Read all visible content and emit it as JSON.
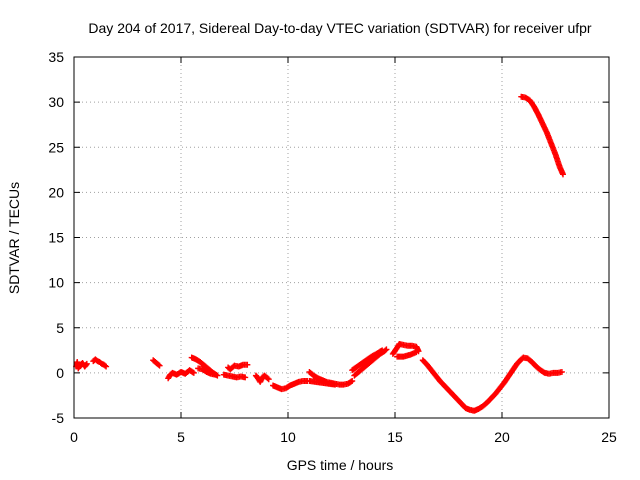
{
  "chart_data": {
    "type": "scatter",
    "title": "Day 204 of 2017, Sidereal Day-to-day VTEC variation (SDTVAR) for receiver ufpr",
    "xlabel": "GPS time / hours",
    "ylabel": "SDTVAR / TECUs",
    "xlim": [
      0,
      25
    ],
    "ylim": [
      -5,
      35
    ],
    "x_ticks": [
      0,
      5,
      10,
      15,
      20,
      25
    ],
    "y_ticks": [
      -5,
      0,
      5,
      10,
      15,
      20,
      25,
      30,
      35
    ],
    "x_tick_labels": [
      "0",
      "5",
      "10",
      "15",
      "20",
      "25"
    ],
    "y_tick_labels": [
      "-5",
      "0",
      "5",
      "10",
      "15",
      "20",
      "25",
      "30",
      "35"
    ],
    "grid": true,
    "marker": "+",
    "color": "#ff0000",
    "series": [
      {
        "name": "SDTVAR",
        "segments": [
          [
            [
              0.1,
              0.7
            ],
            [
              0.15,
              1.2
            ],
            [
              0.2,
              0.5
            ],
            [
              0.3,
              0.9
            ],
            [
              0.4,
              1.1
            ],
            [
              0.5,
              0.7
            ],
            [
              0.6,
              1.0
            ]
          ],
          [
            [
              0.9,
              1.3
            ],
            [
              1.0,
              1.5
            ],
            [
              1.1,
              1.3
            ],
            [
              1.2,
              1.2
            ],
            [
              1.3,
              1.0
            ],
            [
              1.4,
              0.9
            ],
            [
              1.5,
              0.7
            ]
          ],
          [
            [
              3.7,
              1.4
            ],
            [
              3.8,
              1.2
            ],
            [
              3.9,
              1.0
            ],
            [
              4.0,
              0.8
            ]
          ],
          [
            [
              4.4,
              -0.6
            ],
            [
              4.5,
              -0.2
            ],
            [
              4.6,
              0.0
            ],
            [
              4.8,
              -0.2
            ],
            [
              5.0,
              0.1
            ],
            [
              5.2,
              -0.1
            ],
            [
              5.4,
              0.3
            ],
            [
              5.6,
              0.0
            ]
          ],
          [
            [
              5.5,
              1.7
            ],
            [
              5.7,
              1.5
            ],
            [
              5.9,
              1.2
            ],
            [
              6.1,
              0.8
            ],
            [
              6.3,
              0.4
            ],
            [
              6.5,
              0.0
            ],
            [
              6.7,
              -0.3
            ]
          ],
          [
            [
              5.8,
              0.5
            ],
            [
              6.0,
              0.4
            ],
            [
              6.2,
              0.1
            ],
            [
              6.4,
              -0.1
            ],
            [
              6.6,
              -0.2
            ]
          ],
          [
            [
              7.2,
              0.6
            ],
            [
              7.3,
              0.4
            ],
            [
              7.5,
              0.8
            ],
            [
              7.7,
              0.7
            ],
            [
              7.9,
              0.9
            ],
            [
              8.1,
              0.9
            ]
          ],
          [
            [
              7.0,
              -0.2
            ],
            [
              7.2,
              -0.3
            ],
            [
              7.4,
              -0.4
            ],
            [
              7.6,
              -0.5
            ],
            [
              7.8,
              -0.4
            ],
            [
              8.0,
              -0.5
            ]
          ],
          [
            [
              8.5,
              -0.3
            ],
            [
              8.6,
              -0.6
            ],
            [
              8.7,
              -1.0
            ],
            [
              8.8,
              -0.5
            ],
            [
              8.9,
              -0.3
            ],
            [
              9.0,
              -0.5
            ],
            [
              9.1,
              -0.7
            ]
          ],
          [
            [
              9.3,
              -1.4
            ],
            [
              9.5,
              -1.6
            ],
            [
              9.7,
              -1.8
            ],
            [
              9.9,
              -1.7
            ],
            [
              10.1,
              -1.4
            ],
            [
              10.3,
              -1.2
            ],
            [
              10.5,
              -1.0
            ],
            [
              10.7,
              -0.9
            ],
            [
              10.9,
              -0.9
            ]
          ],
          [
            [
              11.0,
              0.1
            ],
            [
              11.2,
              -0.3
            ],
            [
              11.4,
              -0.6
            ],
            [
              11.6,
              -0.8
            ],
            [
              11.8,
              -1.0
            ],
            [
              12.0,
              -1.1
            ],
            [
              12.2,
              -1.2
            ],
            [
              12.4,
              -1.3
            ],
            [
              12.6,
              -1.3
            ],
            [
              12.8,
              -1.2
            ],
            [
              13.0,
              -0.9
            ]
          ],
          [
            [
              11.0,
              -0.9
            ],
            [
              11.3,
              -1.0
            ],
            [
              11.6,
              -1.1
            ],
            [
              11.9,
              -1.2
            ],
            [
              12.2,
              -1.3
            ]
          ],
          [
            [
              13.1,
              -0.3
            ],
            [
              13.3,
              0.1
            ],
            [
              13.5,
              0.5
            ],
            [
              13.7,
              0.9
            ],
            [
              13.9,
              1.3
            ],
            [
              14.1,
              1.7
            ],
            [
              14.3,
              2.1
            ],
            [
              14.5,
              2.4
            ],
            [
              14.6,
              2.6
            ]
          ],
          [
            [
              13.0,
              0.3
            ],
            [
              13.3,
              0.8
            ],
            [
              13.6,
              1.3
            ],
            [
              13.9,
              1.8
            ],
            [
              14.2,
              2.2
            ],
            [
              14.4,
              2.5
            ]
          ],
          [
            [
              14.9,
              2.1
            ],
            [
              15.1,
              2.8
            ],
            [
              15.2,
              3.2
            ],
            [
              15.4,
              3.1
            ],
            [
              15.6,
              3.0
            ],
            [
              15.8,
              3.0
            ],
            [
              16.0,
              2.9
            ],
            [
              16.1,
              2.4
            ]
          ],
          [
            [
              15.1,
              1.8
            ],
            [
              15.4,
              1.8
            ],
            [
              15.7,
              2.0
            ],
            [
              16.0,
              2.3
            ]
          ],
          [
            [
              16.3,
              1.4
            ],
            [
              16.5,
              0.9
            ],
            [
              16.7,
              0.3
            ],
            [
              16.9,
              -0.3
            ],
            [
              17.1,
              -0.9
            ],
            [
              17.3,
              -1.4
            ],
            [
              17.5,
              -1.9
            ],
            [
              17.7,
              -2.4
            ],
            [
              17.9,
              -2.9
            ],
            [
              18.1,
              -3.4
            ],
            [
              18.3,
              -3.9
            ],
            [
              18.5,
              -4.1
            ],
            [
              18.7,
              -4.2
            ],
            [
              18.9,
              -4.0
            ],
            [
              19.1,
              -3.7
            ],
            [
              19.3,
              -3.3
            ],
            [
              19.5,
              -2.8
            ],
            [
              19.7,
              -2.3
            ],
            [
              19.9,
              -1.7
            ],
            [
              20.1,
              -1.1
            ],
            [
              20.3,
              -0.4
            ],
            [
              20.5,
              0.3
            ],
            [
              20.7,
              1.0
            ],
            [
              20.9,
              1.5
            ],
            [
              21.0,
              1.7
            ],
            [
              21.2,
              1.6
            ],
            [
              21.4,
              1.2
            ],
            [
              21.6,
              0.7
            ],
            [
              21.8,
              0.3
            ],
            [
              22.0,
              0.0
            ],
            [
              22.2,
              -0.1
            ],
            [
              22.4,
              0.0
            ],
            [
              22.6,
              0.0
            ],
            [
              22.8,
              0.1
            ]
          ],
          [
            [
              20.9,
              30.6
            ],
            [
              21.1,
              30.5
            ],
            [
              21.3,
              30.2
            ],
            [
              21.5,
              29.5
            ],
            [
              21.7,
              28.6
            ],
            [
              21.9,
              27.6
            ],
            [
              22.1,
              26.6
            ],
            [
              22.3,
              25.4
            ],
            [
              22.5,
              24.2
            ],
            [
              22.7,
              22.8
            ],
            [
              22.85,
              22.0
            ]
          ]
        ]
      }
    ]
  }
}
